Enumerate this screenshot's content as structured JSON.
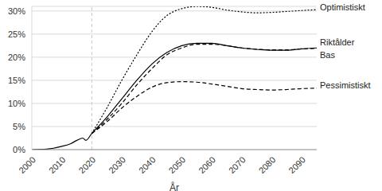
{
  "chart_data": {
    "type": "line",
    "x_label": "År",
    "x": [
      2000,
      2005,
      2010,
      2013,
      2015,
      2017,
      2018,
      2020,
      2025,
      2030,
      2035,
      2040,
      2045,
      2050,
      2055,
      2060,
      2065,
      2070,
      2075,
      2080,
      2085,
      2090,
      2095
    ],
    "series": [
      {
        "name": "Optimistiskt",
        "color": "#000000",
        "line_style": "dotted",
        "values": [
          null,
          null,
          null,
          null,
          null,
          null,
          null,
          3.5,
          9,
          15,
          20.5,
          25.5,
          29,
          30.5,
          31,
          30.8,
          30.2,
          29.8,
          29.6,
          29.7,
          29.9,
          30.1,
          30.3
        ]
      },
      {
        "name": "Riktålder",
        "color": "#000000",
        "line_style": "solid",
        "values": [
          0,
          0.1,
          0.7,
          1.3,
          2.0,
          2.5,
          2.0,
          3.5,
          7,
          11,
          15,
          18.5,
          21,
          22.5,
          23,
          23,
          22.5,
          22,
          21.7,
          21.5,
          21.5,
          21.8,
          22
        ]
      },
      {
        "name": "Bas",
        "color": "#000000",
        "line_style": "dashed",
        "values": [
          null,
          null,
          null,
          null,
          null,
          null,
          null,
          3.5,
          6.5,
          10,
          14,
          17.5,
          20.5,
          22,
          22.8,
          22.8,
          22.5,
          22,
          21.7,
          21.6,
          21.6,
          21.8,
          21.9
        ]
      },
      {
        "name": "Pessimistiskt",
        "color": "#000000",
        "line_style": "dashed",
        "values": [
          null,
          null,
          null,
          null,
          null,
          null,
          null,
          3.5,
          6,
          9,
          11.5,
          13.5,
          14.5,
          14.7,
          14.6,
          14.2,
          13.7,
          13.2,
          13,
          12.9,
          13,
          13.2,
          13.3
        ]
      }
    ],
    "xlim": [
      2000,
      2095
    ],
    "xticks": [
      2000,
      2010,
      2020,
      2030,
      2040,
      2050,
      2060,
      2070,
      2080,
      2090
    ],
    "ylim": [
      0,
      31
    ],
    "yticks": [
      {
        "value": 0,
        "label": "0%"
      },
      {
        "value": 5,
        "label": "5%"
      },
      {
        "value": 10,
        "label": "10%"
      },
      {
        "value": 15,
        "label": "15%"
      },
      {
        "value": 20,
        "label": "20%"
      },
      {
        "value": 25,
        "label": "25%"
      },
      {
        "value": 30,
        "label": "30%"
      }
    ],
    "reference_x": 2020,
    "grid": true
  }
}
